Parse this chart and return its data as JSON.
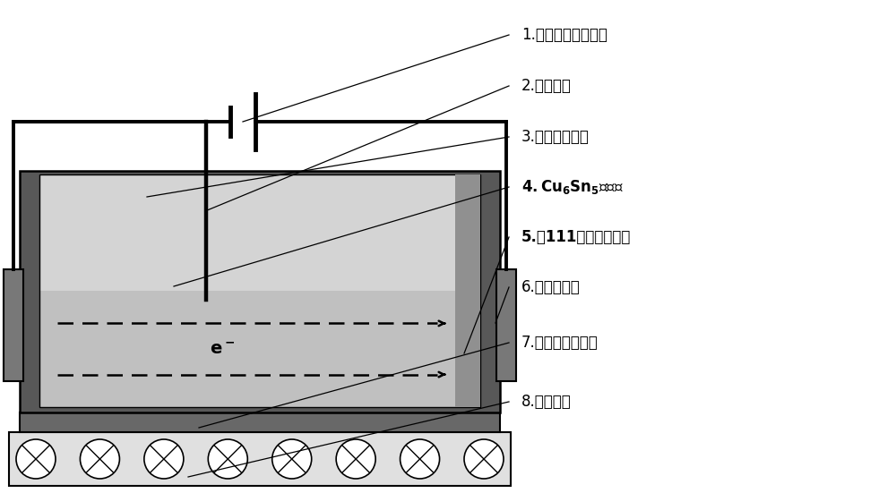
{
  "fig_width": 10.0,
  "fig_height": 5.51,
  "dpi": 100,
  "bg_color": "#ffffff",
  "col_dark": "#4a4a4a",
  "col_mid": "#707070",
  "col_solder_upper": "#d4d4d4",
  "col_solder_lower": "#c0c0c0",
  "col_crucible": "#585858",
  "col_heater": "#686868",
  "col_base": "#e0e0e0",
  "col_electrode": "#787878",
  "col_anode": "#909090",
  "col_inner_wall": "#b0b0b0",
  "labels": [
    "1.直流大电流发生器",
    "2.铂金阴极",
    "3.熔融无铅钎料",
    "4.Cu₆Sn₅单晶块",
    "5.（111）单晶铜阳极",
    "6.石英坩埚槽",
    "7.高频感应加热器",
    "8.酚醛塑料"
  ],
  "label_bold": [
    false,
    false,
    false,
    true,
    true,
    false,
    false,
    false
  ],
  "n_circles": 8
}
